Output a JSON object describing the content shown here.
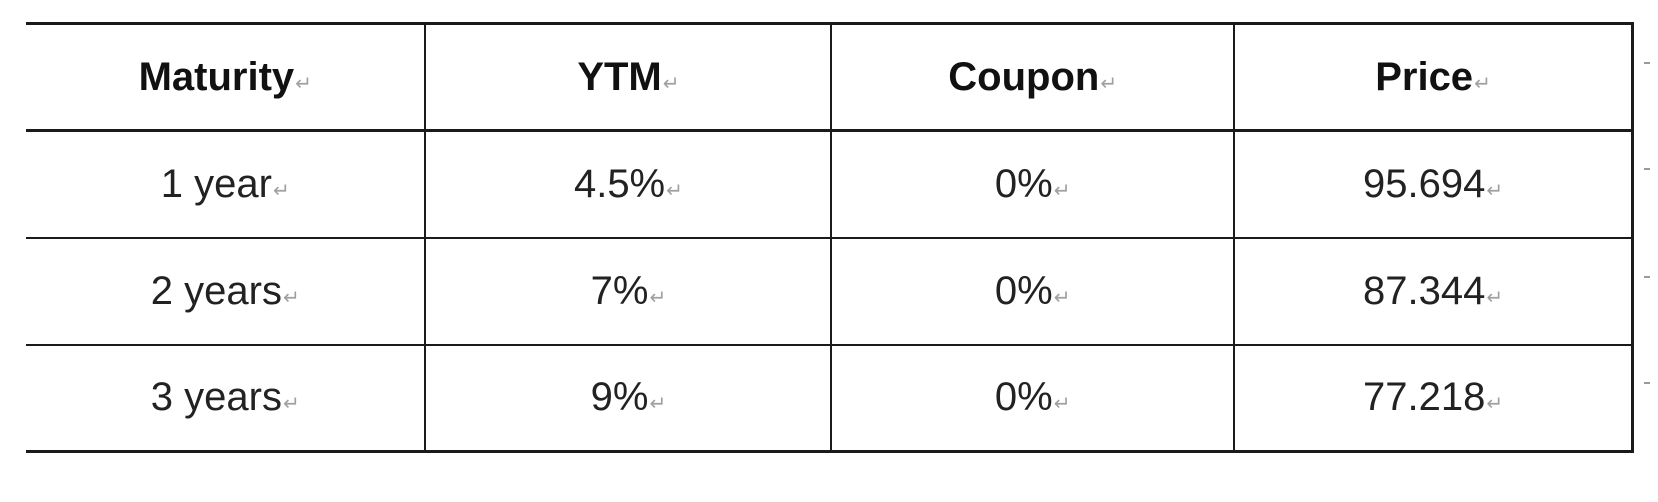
{
  "table": {
    "columns": [
      "Maturity",
      "YTM",
      "Coupon",
      "Price"
    ],
    "rows": [
      [
        "1 year",
        "4.5%",
        "0%",
        "95.694"
      ],
      [
        "2 years",
        "7%",
        "0%",
        "87.344"
      ],
      [
        "3 years",
        "9%",
        "0%",
        "77.218"
      ]
    ],
    "cell_end_mark": "↵"
  }
}
